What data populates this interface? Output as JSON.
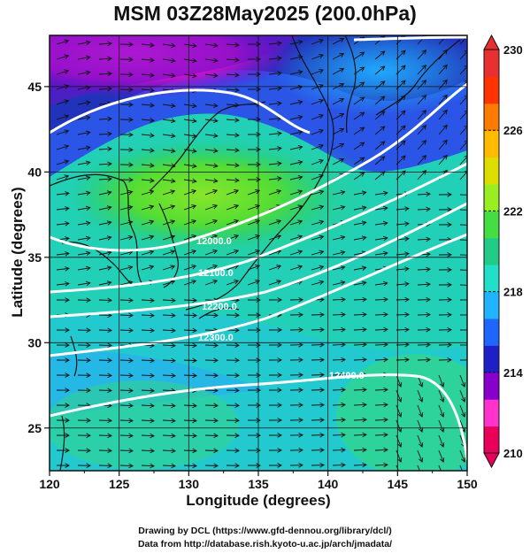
{
  "title": "MSM 03Z28May2025 (200.0hPa)",
  "map": {
    "xlabel": "Longitude (degrees)",
    "ylabel": "Latitude  (degrees)",
    "lon_range": [
      120,
      150
    ],
    "lat_range": [
      22.5,
      48
    ],
    "x_ticks": [
      "120",
      "125",
      "130",
      "135",
      "140",
      "145",
      "150"
    ],
    "y_ticks": [
      "25",
      "30",
      "35",
      "40",
      "45"
    ],
    "grid": true,
    "contour_labels": [
      "12000.0",
      "12100.0",
      "12200.0",
      "12300.0",
      "12400.0"
    ],
    "colorbar": {
      "min": 210,
      "max": 230,
      "tick_labels": [
        "230",
        "226",
        "222",
        "218",
        "214",
        "210"
      ],
      "colors": [
        "#e8005a",
        "#ff33cc",
        "#8800cc",
        "#1f1fc8",
        "#1f66ff",
        "#20b4ff",
        "#20e0c8",
        "#20cc88",
        "#44dd44",
        "#99ee22",
        "#dddd00",
        "#ffbb00",
        "#ff7a00",
        "#ff3300",
        "#e83030"
      ]
    }
  },
  "footer": {
    "line1": "Drawing by DCL (https://www.gfd-dennou.org/library/dcl/)",
    "line2": "Data from http://database.rish.kyoto-u.ac.jp/arch/jmadata/"
  }
}
